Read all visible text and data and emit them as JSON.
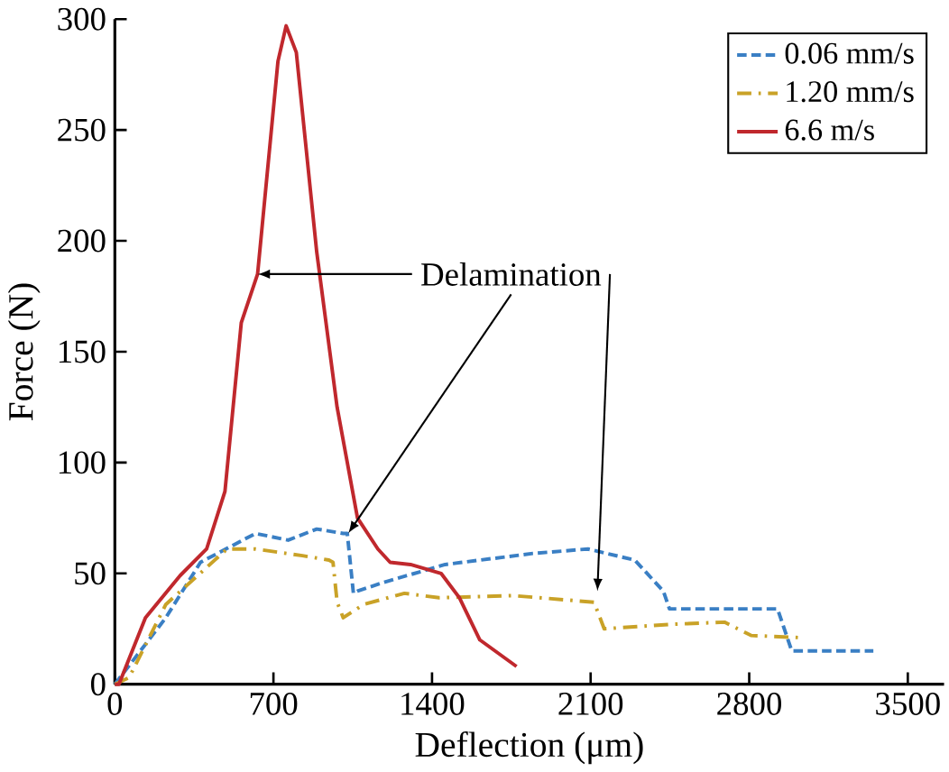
{
  "chart_data": {
    "type": "line",
    "xlabel": "Deflection (μm)",
    "ylabel": "Force (N)",
    "xlim": [
      0,
      3660
    ],
    "xticks": [
      0,
      700,
      1400,
      2100,
      2800,
      3500
    ],
    "ylim": [
      0,
      300
    ],
    "yticks": [
      0,
      50,
      100,
      150,
      200,
      250,
      300
    ],
    "grid": false,
    "legend": "top right",
    "marker": "none",
    "series": [
      {
        "name": "0.06 mm/s",
        "color": "#3a7fc4",
        "line_style": "dashed",
        "x": [
          0,
          225,
          378,
          621,
          765,
          891,
          1008,
          1026,
          1053,
          1071,
          1188,
          1458,
          1845,
          2088,
          2295,
          2421,
          2448,
          2925,
          2988,
          3348
        ],
        "values": [
          0,
          30,
          55,
          68,
          65,
          70,
          68,
          68,
          41,
          42,
          46,
          54,
          59,
          61,
          56,
          42,
          34,
          34,
          15,
          15
        ]
      },
      {
        "name": "1.20 mm/s",
        "color": "#c9a227",
        "line_style": "dashdot",
        "x": [
          0,
          63,
          225,
          495,
          621,
          828,
          945,
          963,
          981,
          1008,
          1098,
          1278,
          1431,
          1755,
          2115,
          2160,
          2448,
          2691,
          2808,
          3033
        ],
        "values": [
          0,
          3,
          36,
          61,
          61,
          58,
          56,
          55,
          37,
          30,
          36,
          41,
          39,
          40,
          37,
          25,
          27,
          28,
          22,
          21
        ]
      },
      {
        "name": "6.6 m/s",
        "color": "#c0282d",
        "line_style": "solid",
        "x": [
          0,
          18,
          135,
          288,
          405,
          486,
          558,
          630,
          720,
          756,
          801,
          891,
          981,
          1071,
          1161,
          1215,
          1305,
          1440,
          1521,
          1611,
          1773
        ],
        "values": [
          0,
          0,
          30,
          49,
          61,
          87,
          163,
          185,
          281,
          297,
          285,
          195,
          125,
          75,
          61,
          55,
          54,
          50,
          39,
          20,
          8
        ]
      }
    ],
    "annotations": [
      {
        "text": "Delamination",
        "x": 630,
        "y": 185
      }
    ]
  }
}
